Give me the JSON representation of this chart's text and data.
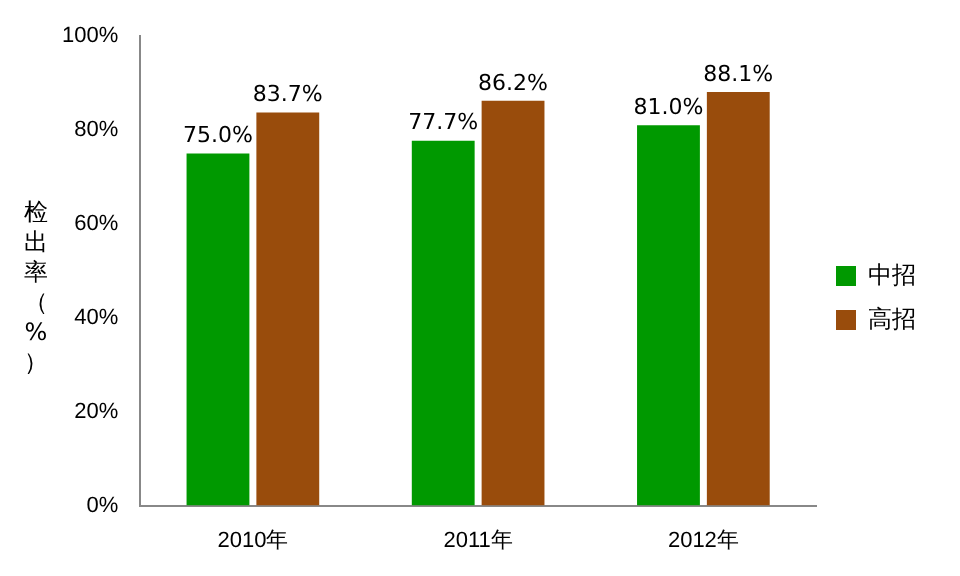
{
  "chart_data": {
    "type": "bar",
    "ylabel": "检出率（%）",
    "categories": [
      "2010年",
      "2011年",
      "2012年"
    ],
    "series": [
      {
        "name": "中招",
        "color": "#009900",
        "values": [
          75.0,
          77.7,
          81.0
        ],
        "value_labels": [
          "75.0%",
          "77.7%",
          "81.0%"
        ]
      },
      {
        "name": "高招",
        "color": "#994c0c",
        "values": [
          83.7,
          86.2,
          88.1
        ],
        "value_labels": [
          "83.7%",
          "86.2%",
          "88.1%"
        ]
      }
    ],
    "ylim": [
      0,
      100
    ],
    "yticks": [
      {
        "value": 0,
        "label": "0%"
      },
      {
        "value": 20,
        "label": "20%"
      },
      {
        "value": 40,
        "label": "40%"
      },
      {
        "value": 60,
        "label": "60%"
      },
      {
        "value": 80,
        "label": "80%"
      },
      {
        "value": 100,
        "label": "100%"
      }
    ],
    "legend": "right"
  }
}
